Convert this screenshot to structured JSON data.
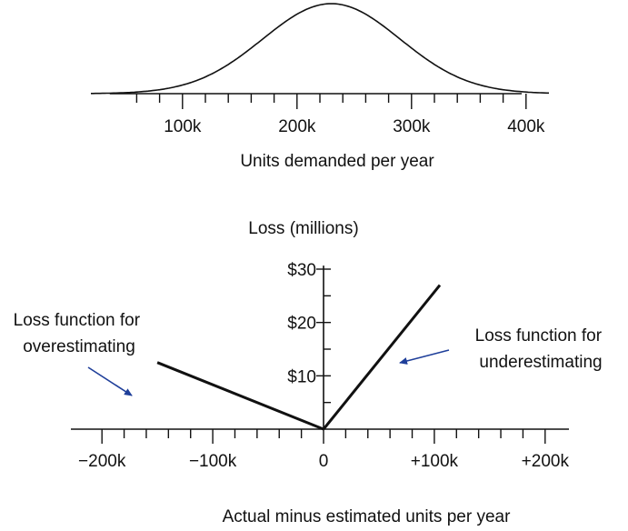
{
  "chart_data": [
    {
      "type": "area",
      "description_role": "demand distribution",
      "x": [
        50000,
        100000,
        150000,
        200000,
        230000,
        260000,
        300000,
        350000,
        400000
      ],
      "y_relative": [
        0.02,
        0.12,
        0.42,
        0.85,
        1.0,
        0.85,
        0.42,
        0.12,
        0.02
      ],
      "mean": 230000,
      "xlim": [
        20000,
        420000
      ],
      "xticks": [
        "100k",
        "200k",
        "300k",
        "400k"
      ],
      "xtick_values": [
        100000,
        200000,
        300000,
        400000
      ],
      "minor_tick_step": 20000,
      "xlabel": "Units demanded per year",
      "grid": false
    },
    {
      "type": "line",
      "series": [
        {
          "x": [
            -150000,
            0
          ],
          "y": [
            12.5,
            0
          ]
        },
        {
          "x": [
            0,
            105000
          ],
          "y": [
            0,
            27
          ]
        }
      ],
      "xlim": [
        -210000,
        210000
      ],
      "ylim": [
        0,
        31
      ],
      "xticks": [
        "−200k",
        "−100k",
        "0",
        "+100k",
        "+200k"
      ],
      "xtick_values": [
        -200000,
        -100000,
        0,
        100000,
        200000
      ],
      "x_minor_tick_step": 20000,
      "yticks": [
        "$10",
        "$20",
        "$30"
      ],
      "ytick_values": [
        10,
        20,
        30
      ],
      "y_minor_tick_step": 5,
      "ylabel": "Loss (millions)",
      "xlabel": "Actual minus estimated units per year",
      "annotations": [
        {
          "text": "Loss function for\noverestimating",
          "points_to": "left"
        },
        {
          "text": "Loss function for\nunderestimating",
          "points_to": "right"
        }
      ],
      "arrow_color": "#1f3f9a",
      "line_color": "#111111",
      "grid": false
    }
  ]
}
